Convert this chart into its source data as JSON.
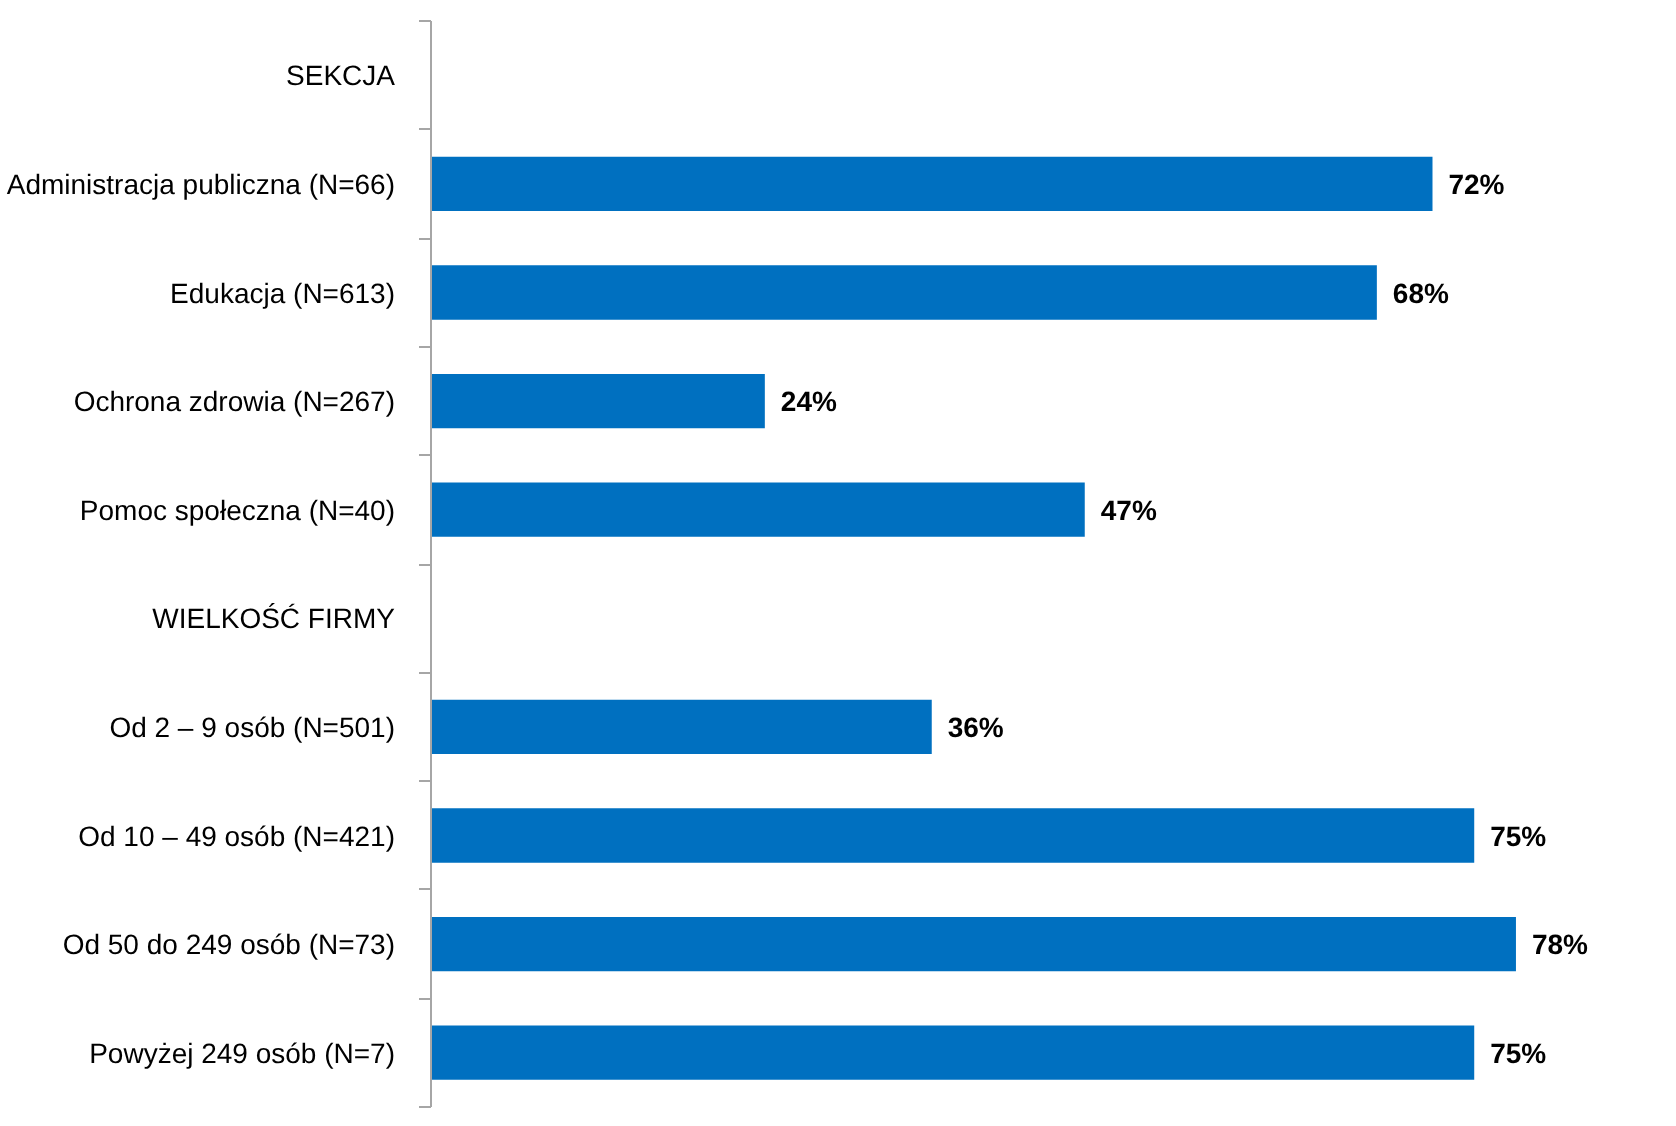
{
  "chart_data": {
    "type": "bar",
    "orientation": "horizontal",
    "categories": [
      "SEKCJA",
      "Administracja publiczna (N=66)",
      "Edukacja (N=613)",
      "Ochrona zdrowia (N=267)",
      "Pomoc społeczna (N=40)",
      "WIELKOŚĆ FIRMY",
      "Od 2 – 9 osób (N=501)",
      "Od 10 – 49 osób (N=421)",
      "Od 50 do 249 osób (N=73)",
      "Powyżej 249 osób (N=7)"
    ],
    "values": [
      null,
      72,
      68,
      24,
      47,
      null,
      36,
      75,
      78,
      75
    ],
    "value_labels": [
      null,
      "72%",
      "68%",
      "24%",
      "47%",
      null,
      "36%",
      "75%",
      "78%",
      "75%"
    ],
    "color": "#0070c0",
    "grid": false,
    "tick_labels": "y"
  }
}
